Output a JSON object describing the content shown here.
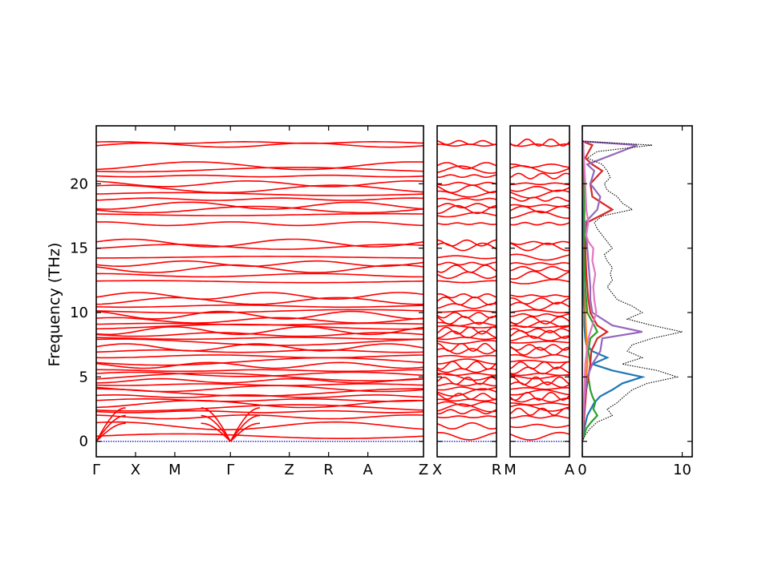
{
  "chart_data": {
    "type": "line",
    "ylabel": "Frequency (THz)",
    "ylim": [
      -1.2,
      24.5
    ],
    "y_ticks": [
      0,
      5,
      10,
      15,
      20
    ],
    "y_tick_labels": [
      "0",
      "5",
      "10",
      "15",
      "20"
    ],
    "band_color": "#ff0000",
    "zero_line_color": "#0000cc",
    "panels": [
      {
        "name": "panel-1",
        "ticks": [
          {
            "label": "Γ",
            "pos": 0.0
          },
          {
            "label": "X",
            "pos": 0.12
          },
          {
            "label": "M",
            "pos": 0.24
          },
          {
            "label": "Γ",
            "pos": 0.41
          },
          {
            "label": "Z",
            "pos": 0.59
          },
          {
            "label": "R",
            "pos": 0.71
          },
          {
            "label": "A",
            "pos": 0.83
          },
          {
            "label": "Z",
            "pos": 1.0
          }
        ],
        "acoustic_nodes": [
          0.0,
          0.41
        ]
      },
      {
        "name": "panel-2",
        "ticks": [
          {
            "label": "X",
            "pos": 0.0
          },
          {
            "label": "R",
            "pos": 1.0
          }
        ],
        "acoustic_nodes": []
      },
      {
        "name": "panel-3",
        "ticks": [
          {
            "label": "M",
            "pos": 0.0
          },
          {
            "label": "A",
            "pos": 1.0
          }
        ],
        "acoustic_nodes": []
      }
    ],
    "band_levels": [
      0.4,
      1.2,
      1.9,
      2.3,
      2.6,
      2.9,
      3.2,
      3.5,
      3.8,
      4.1,
      4.4,
      4.7,
      5.0,
      5.2,
      5.5,
      5.9,
      6.2,
      6.6,
      7.0,
      7.3,
      7.7,
      8.0,
      8.3,
      8.6,
      8.9,
      9.1,
      9.4,
      9.8,
      10.1,
      10.5,
      10.9,
      11.3,
      12.4,
      12.9,
      13.4,
      13.8,
      14.3,
      15.1,
      15.4,
      16.9,
      17.6,
      18.0,
      18.3,
      18.8,
      19.2,
      19.6,
      20.0,
      20.6,
      21.1,
      21.4,
      23.0,
      23.2
    ],
    "dos": {
      "xlim": [
        0,
        11
      ],
      "x_ticks": [
        0,
        10
      ],
      "x_tick_labels": [
        "0",
        "10"
      ],
      "total": {
        "color": "#000000",
        "values": [
          [
            0,
            0
          ],
          [
            0.5,
            0.3
          ],
          [
            1,
            0.8
          ],
          [
            1.5,
            1.5
          ],
          [
            2,
            3
          ],
          [
            2.5,
            2.5
          ],
          [
            3,
            3.5
          ],
          [
            3.5,
            4.2
          ],
          [
            4,
            5
          ],
          [
            4.5,
            6.5
          ],
          [
            5,
            9.5
          ],
          [
            5.5,
            7.5
          ],
          [
            6,
            4
          ],
          [
            6.5,
            6
          ],
          [
            7,
            4.5
          ],
          [
            7.5,
            5
          ],
          [
            8,
            7
          ],
          [
            8.5,
            10
          ],
          [
            9,
            7
          ],
          [
            9.5,
            4.5
          ],
          [
            10,
            6
          ],
          [
            10.5,
            5
          ],
          [
            11,
            3.5
          ],
          [
            11.5,
            3
          ],
          [
            12,
            2.5
          ],
          [
            12.5,
            3
          ],
          [
            13,
            2.8
          ],
          [
            13.5,
            3
          ],
          [
            14,
            2.5
          ],
          [
            14.5,
            2.2
          ],
          [
            15,
            3
          ],
          [
            15.5,
            2.5
          ],
          [
            16,
            2
          ],
          [
            16.5,
            1.5
          ],
          [
            17,
            1.2
          ],
          [
            17.5,
            2
          ],
          [
            18,
            5
          ],
          [
            18.5,
            4
          ],
          [
            19,
            3.5
          ],
          [
            19.5,
            2.5
          ],
          [
            20,
            2.2
          ],
          [
            20.5,
            2.8
          ],
          [
            21,
            2.5
          ],
          [
            21.5,
            2
          ],
          [
            22,
            0.5
          ],
          [
            22.5,
            1.5
          ],
          [
            23,
            7
          ],
          [
            23.3,
            0
          ]
        ]
      },
      "projected": [
        {
          "color": "#1f77b4",
          "values": [
            [
              0,
              0
            ],
            [
              1,
              0.2
            ],
            [
              2,
              0.5
            ],
            [
              3,
              1.2
            ],
            [
              3.5,
              1.8
            ],
            [
              4,
              3
            ],
            [
              4.5,
              4
            ],
            [
              5,
              6
            ],
            [
              5.5,
              3
            ],
            [
              6,
              1
            ],
            [
              6.5,
              2.5
            ],
            [
              7,
              1
            ],
            [
              7.5,
              0.4
            ],
            [
              8,
              0.3
            ],
            [
              9,
              0.2
            ],
            [
              10,
              0.2
            ],
            [
              12,
              0.1
            ],
            [
              15,
              0.1
            ],
            [
              20,
              0.1
            ],
            [
              23,
              0.1
            ],
            [
              23.3,
              0
            ]
          ]
        },
        {
          "color": "#ff7f0e",
          "values": [
            [
              0,
              0
            ],
            [
              2,
              0.2
            ],
            [
              4,
              0.3
            ],
            [
              6,
              0.5
            ],
            [
              8,
              0.4
            ],
            [
              10,
              0.3
            ],
            [
              12,
              0.3
            ],
            [
              14,
              0.2
            ],
            [
              16,
              0.2
            ],
            [
              18,
              0.2
            ],
            [
              20,
              0.1
            ],
            [
              23,
              0.1
            ],
            [
              23.3,
              0
            ]
          ]
        },
        {
          "color": "#2ca02c",
          "values": [
            [
              0,
              0
            ],
            [
              1,
              0.4
            ],
            [
              1.5,
              0.9
            ],
            [
              2,
              1.5
            ],
            [
              2.5,
              1.1
            ],
            [
              3,
              1.3
            ],
            [
              3.5,
              1
            ],
            [
              4,
              0.8
            ],
            [
              5,
              0.6
            ],
            [
              6,
              0.8
            ],
            [
              7,
              0.6
            ],
            [
              8,
              0.8
            ],
            [
              8.5,
              1.5
            ],
            [
              9,
              1.2
            ],
            [
              10,
              0.5
            ],
            [
              12,
              0.3
            ],
            [
              14,
              0.2
            ],
            [
              18,
              0.2
            ],
            [
              23,
              0.1
            ],
            [
              23.3,
              0
            ]
          ]
        },
        {
          "color": "#d62728",
          "values": [
            [
              0,
              0
            ],
            [
              2,
              0.2
            ],
            [
              4,
              0.4
            ],
            [
              6,
              0.8
            ],
            [
              7,
              0.9
            ],
            [
              8,
              1.5
            ],
            [
              8.5,
              2.5
            ],
            [
              9,
              1.5
            ],
            [
              10,
              0.8
            ],
            [
              11,
              0.6
            ],
            [
              13,
              0.4
            ],
            [
              15,
              0.3
            ],
            [
              17,
              0.5
            ],
            [
              18,
              3
            ],
            [
              18.5,
              2
            ],
            [
              19,
              1
            ],
            [
              20,
              0.8
            ],
            [
              21,
              2
            ],
            [
              21.5,
              1
            ],
            [
              22,
              0.3
            ],
            [
              23,
              1
            ],
            [
              23.3,
              0
            ]
          ]
        },
        {
          "color": "#9467bd",
          "values": [
            [
              0,
              0
            ],
            [
              3,
              0.2
            ],
            [
              5,
              0.5
            ],
            [
              6,
              1
            ],
            [
              7,
              1.8
            ],
            [
              8,
              2
            ],
            [
              8.5,
              6
            ],
            [
              9,
              3
            ],
            [
              10,
              1
            ],
            [
              11,
              0.8
            ],
            [
              12,
              0.8
            ],
            [
              13,
              0.7
            ],
            [
              14,
              0.6
            ],
            [
              15,
              0.5
            ],
            [
              16,
              0.4
            ],
            [
              17,
              0.3
            ],
            [
              18,
              1.5
            ],
            [
              19,
              1.8
            ],
            [
              20,
              0.8
            ],
            [
              21,
              1.2
            ],
            [
              21.5,
              0.5
            ],
            [
              23,
              5.5
            ],
            [
              23.3,
              0
            ]
          ]
        },
        {
          "color": "#e377c2",
          "values": [
            [
              0,
              0
            ],
            [
              4,
              0.2
            ],
            [
              6,
              0.3
            ],
            [
              8,
              0.6
            ],
            [
              9,
              1
            ],
            [
              10,
              1.4
            ],
            [
              11,
              1.2
            ],
            [
              12,
              1.1
            ],
            [
              13,
              1.3
            ],
            [
              14,
              1
            ],
            [
              15,
              1.1
            ],
            [
              15.5,
              0.6
            ],
            [
              16,
              0.4
            ],
            [
              17,
              0.6
            ],
            [
              18,
              0.4
            ],
            [
              20,
              0.3
            ],
            [
              23,
              0.1
            ],
            [
              23.3,
              0
            ]
          ]
        }
      ]
    }
  }
}
